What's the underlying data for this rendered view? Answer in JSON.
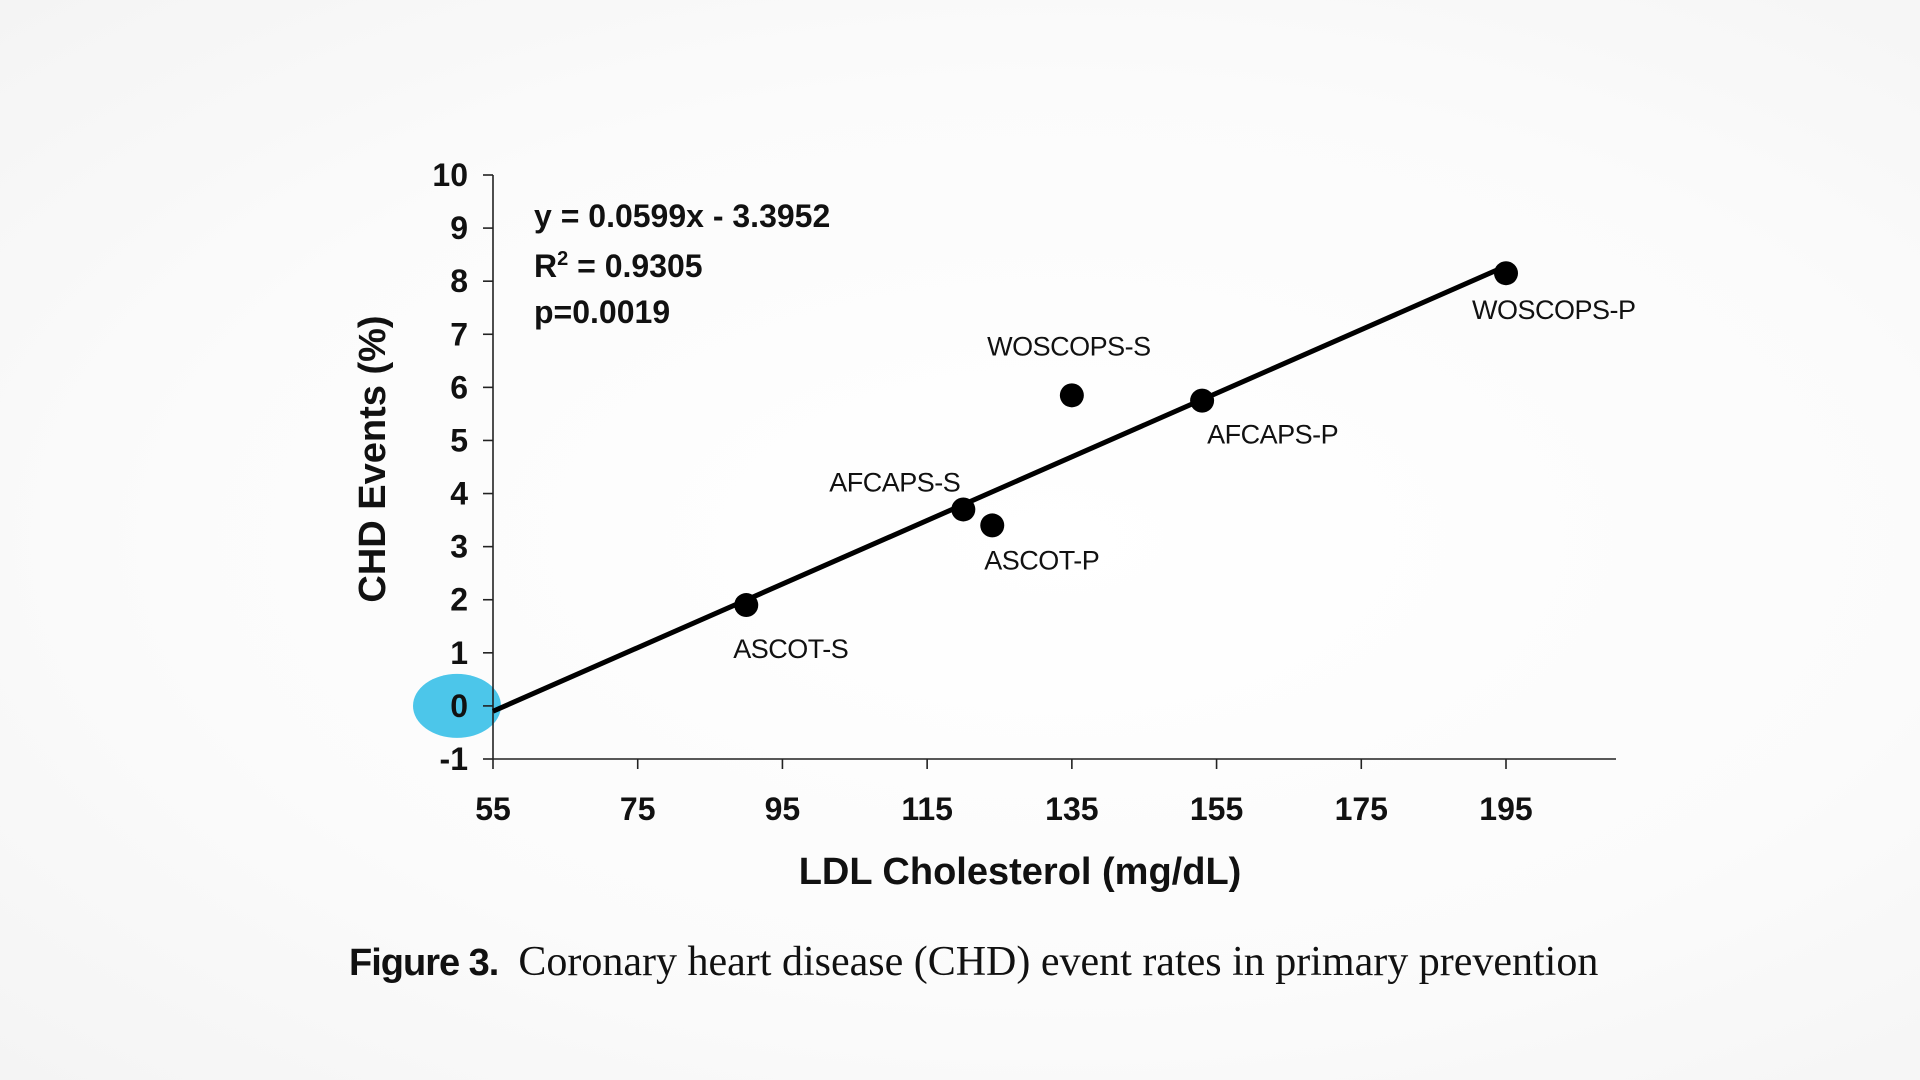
{
  "chart_data": {
    "type": "scatter",
    "xlabel": "LDL Cholesterol (mg/dL)",
    "ylabel": "CHD Events (%)",
    "xlim": [
      55,
      210
    ],
    "ylim": [
      -1,
      10
    ],
    "xticks": [
      55,
      75,
      95,
      115,
      135,
      155,
      175,
      195
    ],
    "yticks": [
      10,
      9,
      8,
      7,
      6,
      5,
      4,
      3,
      2,
      1,
      0,
      -1
    ],
    "grid": false,
    "points": [
      {
        "label": "ASCOT-S",
        "x": 90,
        "y": 1.9
      },
      {
        "label": "AFCAPS-S",
        "x": 120,
        "y": 3.7
      },
      {
        "label": "ASCOT-P",
        "x": 124,
        "y": 3.4
      },
      {
        "label": "WOSCOPS-S",
        "x": 135,
        "y": 5.85
      },
      {
        "label": "AFCAPS-P",
        "x": 153,
        "y": 5.75
      },
      {
        "label": "WOSCOPS-P",
        "x": 195,
        "y": 8.15
      }
    ],
    "trendline": {
      "slope": 0.0599,
      "intercept": -3.3952,
      "x_range": [
        55,
        195
      ]
    },
    "annotations": {
      "equation": "y = 0.0599x - 3.3952",
      "r2_prefix": "R",
      "r2_sup": "2",
      "r2_value": " = 0.9305",
      "p_value": "p=0.0019"
    },
    "highlight": {
      "target_tick": 0,
      "color": "#4cc6ea"
    }
  },
  "caption": {
    "label": "Figure 3.",
    "text": "Coronary heart disease (CHD) event rates in primary prevention"
  }
}
